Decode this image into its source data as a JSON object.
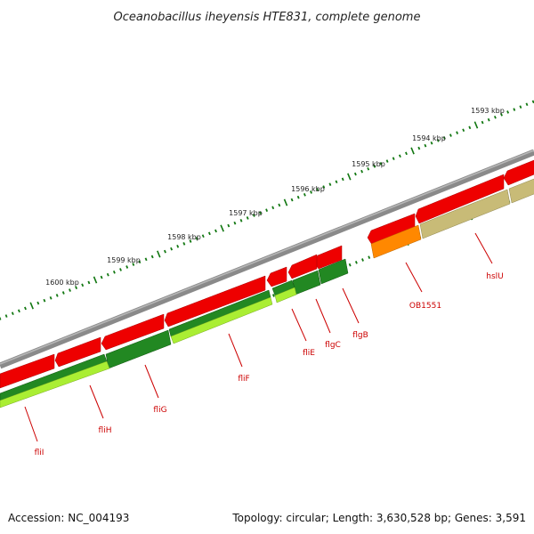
{
  "title": "Oceanobacillus iheyensis HTE831, complete genome",
  "accession": "Accession: NC_004193",
  "topology": "Topology: circular; Length: 3,630,528 bp; Genes: 3,591",
  "kbp_markers": [
    "1593 kbp",
    "1594 kbp",
    "1595 kbp",
    "1596 kbp",
    "1597 kbp",
    "1598 kbp",
    "1599 kbp",
    "1600 kbp"
  ],
  "gene_labels": [
    "hslU",
    "OB1551",
    "flgB",
    "flgC",
    "fliE",
    "fliF",
    "fliG",
    "fliH",
    "fliI"
  ],
  "colors": {
    "backbone": "#7a7a7a",
    "cds": "#ee0000",
    "cog_dark_green": "#228822",
    "cog_light_green": "#aaee33",
    "cog_orange": "#ff8800",
    "cog_khaki": "#c8bb77",
    "ticks": "#117711",
    "label": "#cc0000"
  }
}
